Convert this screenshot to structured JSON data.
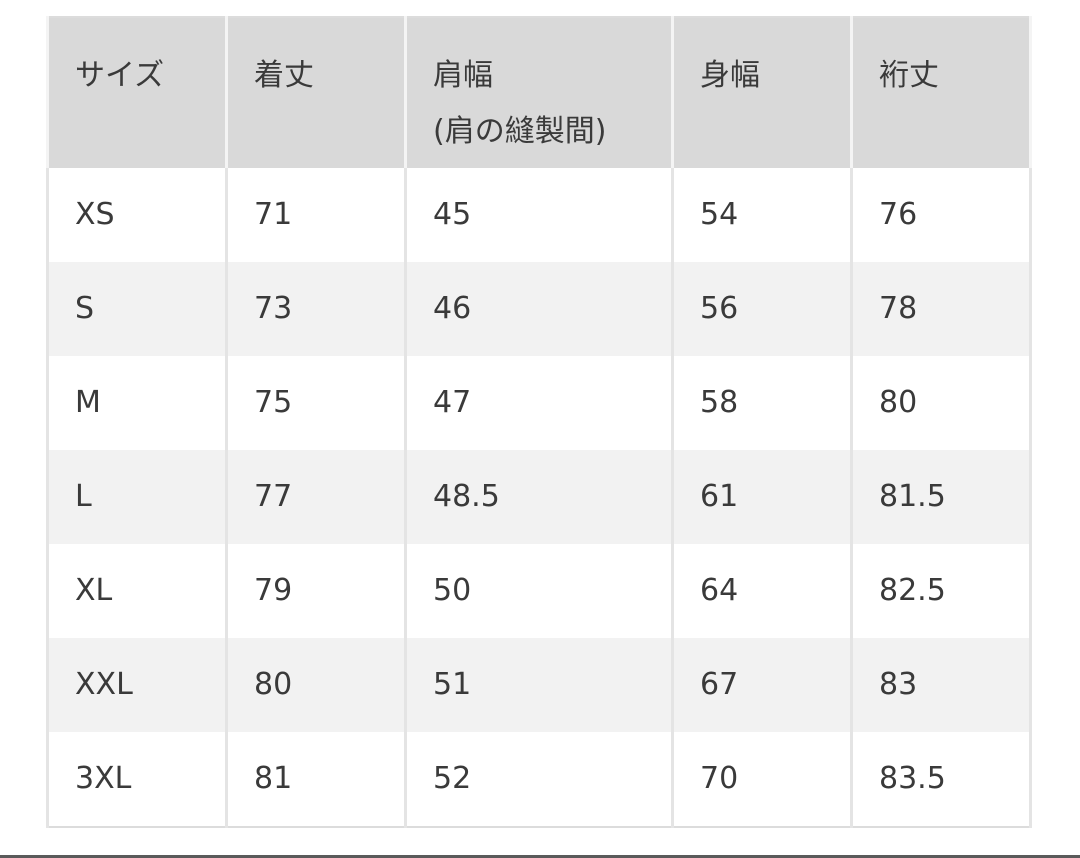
{
  "headers": [
    "サイズ",
    "着丈",
    "肩幅",
    "身幅",
    "裄丈"
  ],
  "header_sub": "(肩の縫製間)",
  "rows": [
    [
      "XS",
      "71",
      "45",
      "54",
      "76"
    ],
    [
      "S",
      "73",
      "46",
      "56",
      "78"
    ],
    [
      "M",
      "75",
      "47",
      "58",
      "80"
    ],
    [
      "L",
      "77",
      "48.5",
      "61",
      "81.5"
    ],
    [
      "XL",
      "79",
      "50",
      "64",
      "82.5"
    ],
    [
      "XXL",
      "80",
      "51",
      "67",
      "83"
    ],
    [
      "3XL",
      "81",
      "52",
      "70",
      "83.5"
    ]
  ],
  "colors": {
    "header_bg": "#d9d9d9",
    "stripe_bg": "#f2f2f2",
    "text": "#3a3a3a"
  }
}
